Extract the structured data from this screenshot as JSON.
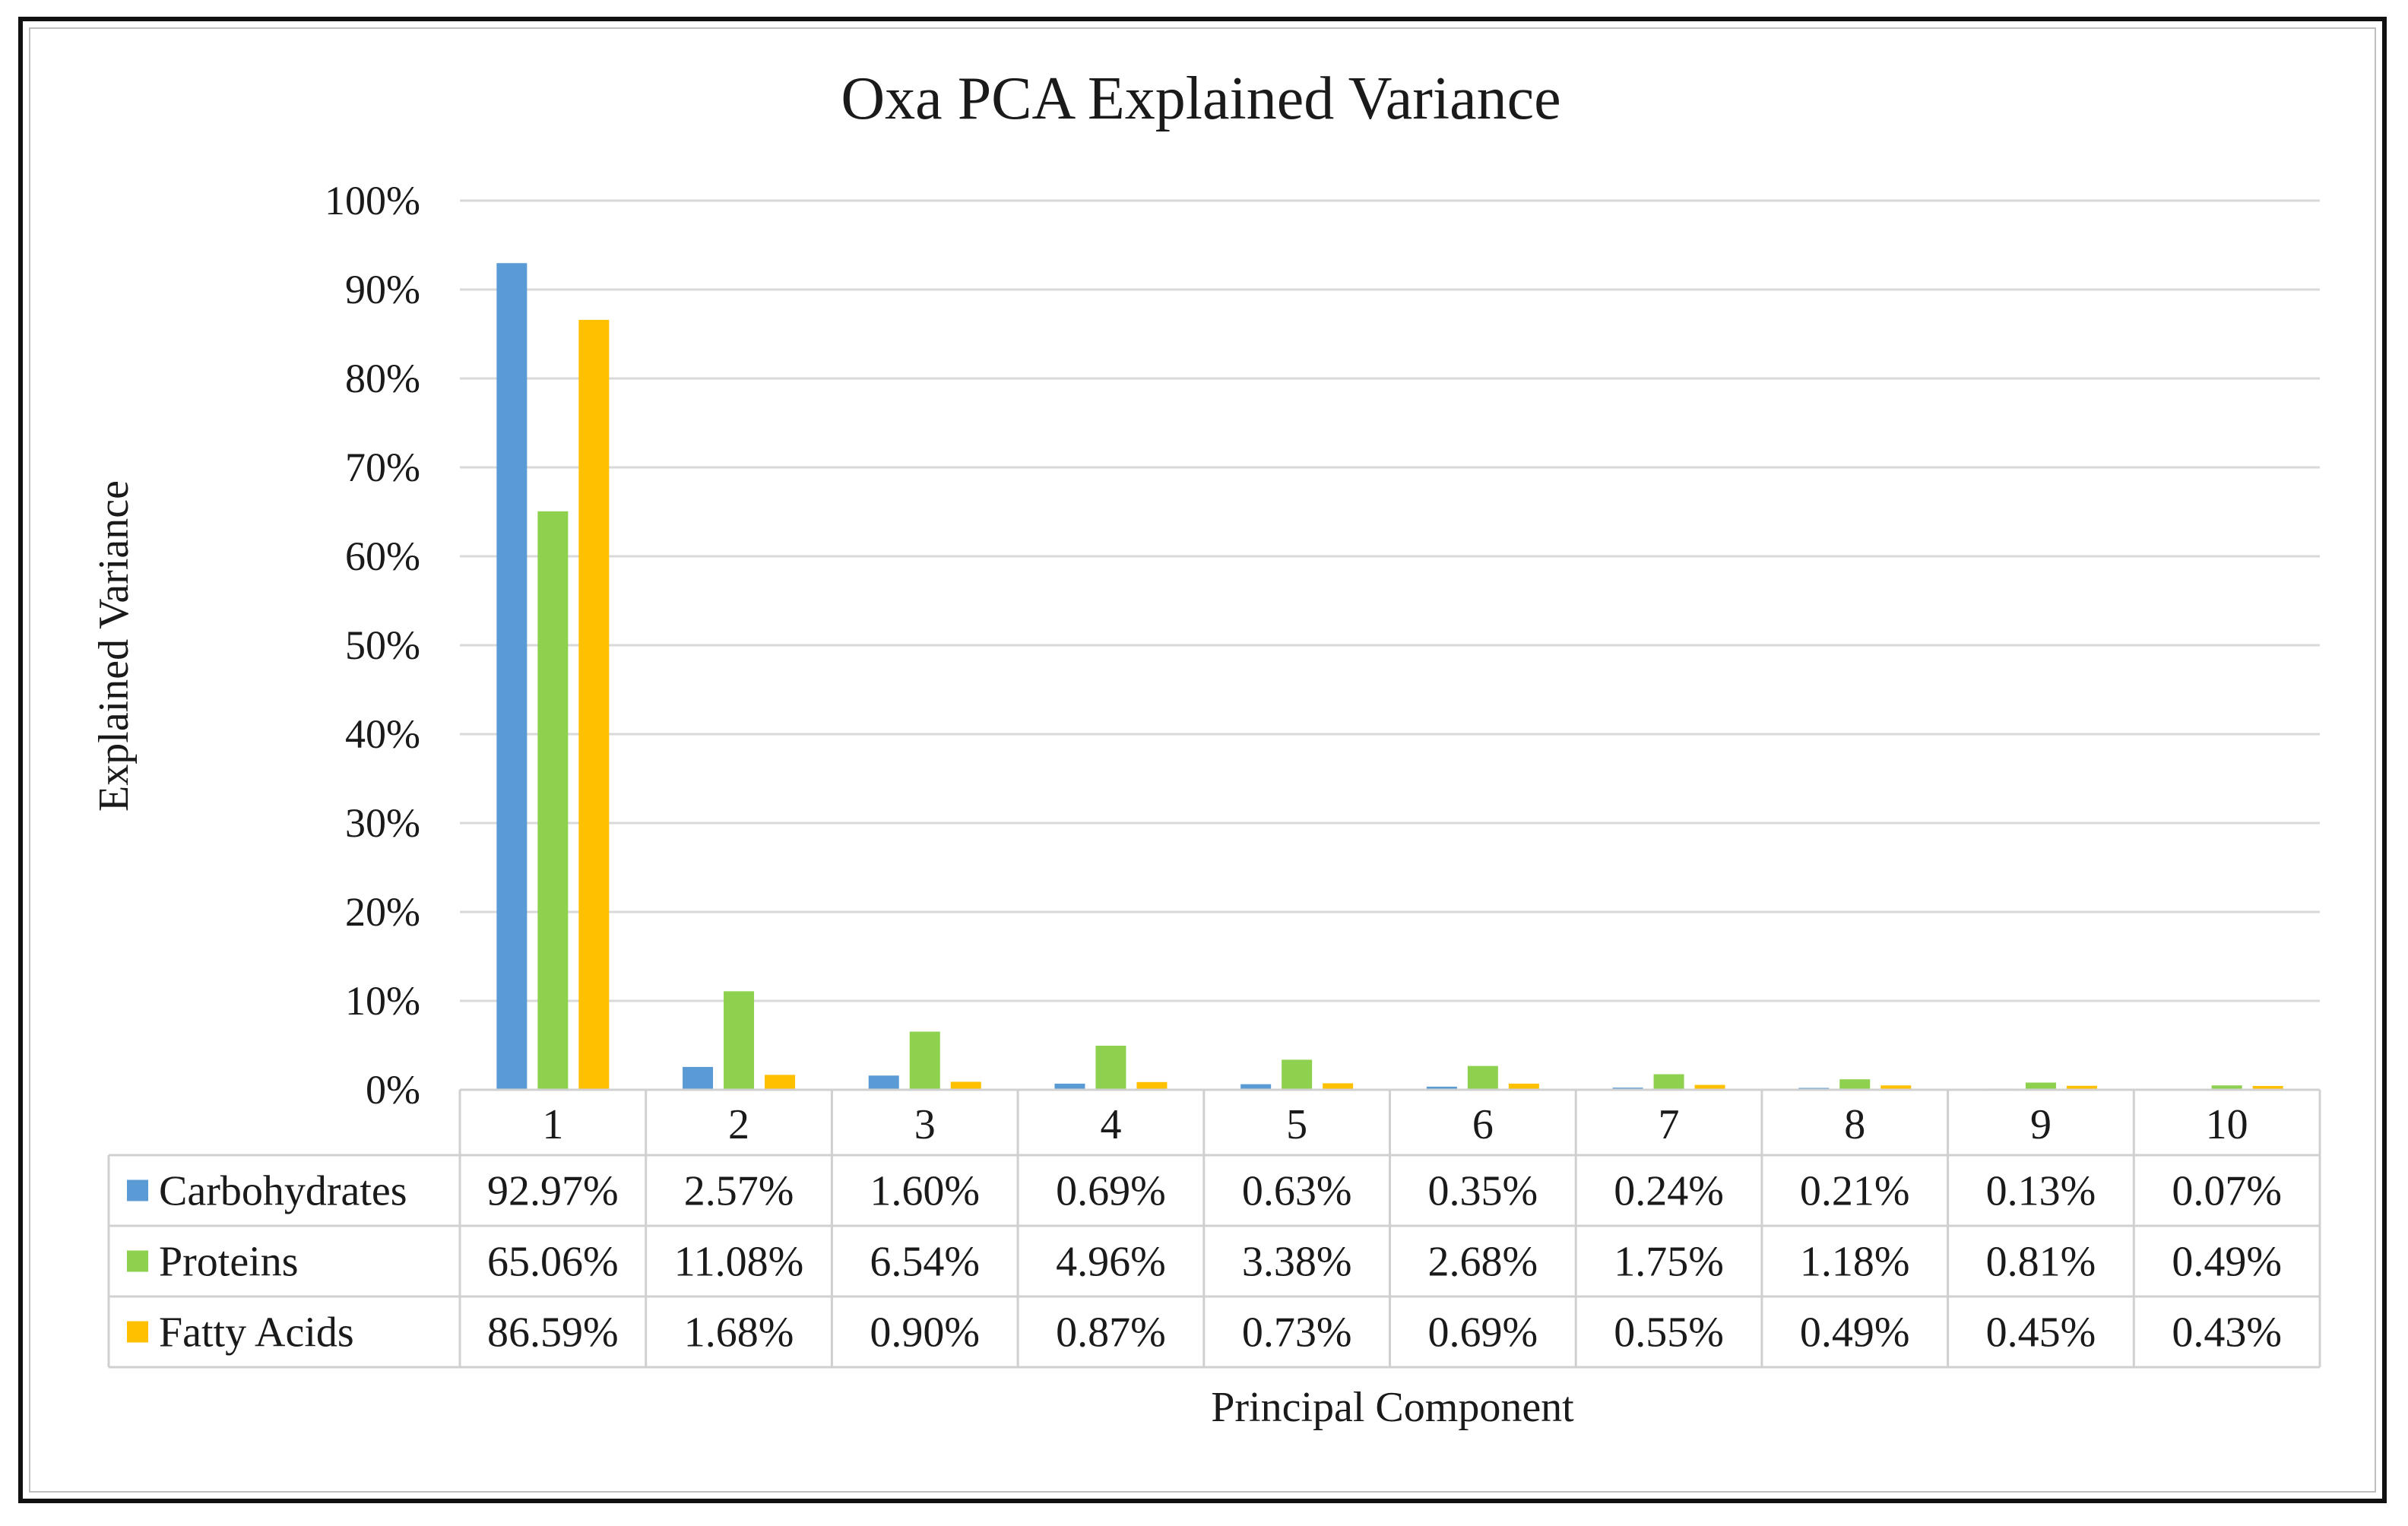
{
  "chart_data": {
    "type": "bar",
    "title": "Oxa PCA Explained Variance",
    "xlabel": "Principal Component",
    "ylabel": "Explained Variance",
    "ylim": [
      0,
      100
    ],
    "yticks": [
      "0%",
      "10%",
      "20%",
      "30%",
      "40%",
      "50%",
      "60%",
      "70%",
      "80%",
      "90%",
      "100%"
    ],
    "grid": true,
    "legend": "data-table",
    "categories": [
      "1",
      "2",
      "3",
      "4",
      "5",
      "6",
      "7",
      "8",
      "9",
      "10"
    ],
    "series": [
      {
        "name": "Carbohydrates",
        "color": "#5B9BD5",
        "values": [
          92.97,
          2.57,
          1.6,
          0.69,
          0.63,
          0.35,
          0.24,
          0.21,
          0.13,
          0.07
        ],
        "labels": [
          "92.97%",
          "2.57%",
          "1.60%",
          "0.69%",
          "0.63%",
          "0.35%",
          "0.24%",
          "0.21%",
          "0.13%",
          "0.07%"
        ]
      },
      {
        "name": "Proteins",
        "color": "#8ED14F",
        "values": [
          65.06,
          11.08,
          6.54,
          4.96,
          3.38,
          2.68,
          1.75,
          1.18,
          0.81,
          0.49
        ],
        "labels": [
          "65.06%",
          "11.08%",
          "6.54%",
          "4.96%",
          "3.38%",
          "2.68%",
          "1.75%",
          "1.18%",
          "0.81%",
          "0.49%"
        ]
      },
      {
        "name": "Fatty Acids",
        "color": "#FFC000",
        "values": [
          86.59,
          1.68,
          0.9,
          0.87,
          0.73,
          0.69,
          0.55,
          0.49,
          0.45,
          0.43
        ],
        "labels": [
          "86.59%",
          "1.68%",
          "0.90%",
          "0.87%",
          "0.73%",
          "0.69%",
          "0.55%",
          "0.49%",
          "0.45%",
          "0.43%"
        ]
      }
    ]
  }
}
